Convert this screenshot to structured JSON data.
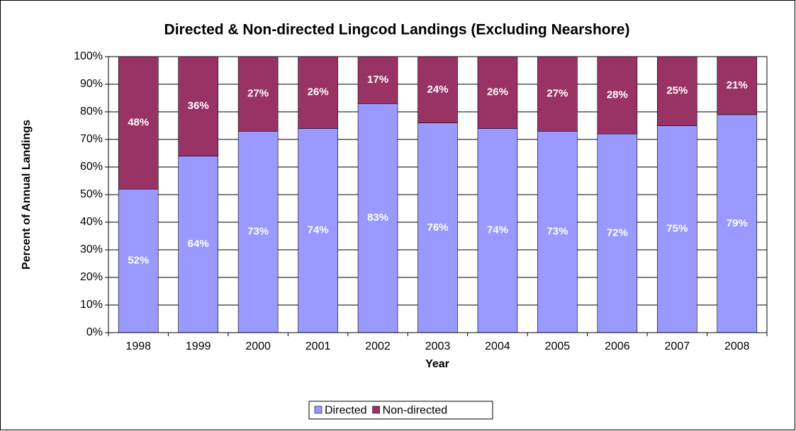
{
  "chart_data": {
    "type": "stacked_bar",
    "title": "Directed & Non-directed Lingcod Landings (Excluding Nearshore)",
    "x_label": "Year",
    "y_label": "Percent of Annual Landings",
    "categories": [
      "1998",
      "1999",
      "2000",
      "2001",
      "2002",
      "2003",
      "2004",
      "2005",
      "2006",
      "2007",
      "2008"
    ],
    "series": [
      {
        "name": "Directed",
        "color": "#9999ff",
        "values": [
          52,
          64,
          73,
          74,
          83,
          76,
          74,
          73,
          72,
          75,
          79
        ],
        "value_labels": [
          "52%",
          "64%",
          "73%",
          "74%",
          "83%",
          "76%",
          "74%",
          "73%",
          "72%",
          "75%",
          "79%"
        ]
      },
      {
        "name": "Non-directed",
        "color": "#993366",
        "values": [
          48,
          36,
          27,
          26,
          17,
          24,
          26,
          27,
          28,
          25,
          21
        ],
        "value_labels": [
          "48%",
          "36%",
          "27%",
          "26%",
          "17%",
          "24%",
          "26%",
          "27%",
          "28%",
          "25%",
          "21%"
        ]
      }
    ],
    "ylim": [
      0,
      100
    ],
    "yticks": [
      {
        "value": 0,
        "label": "0%"
      },
      {
        "value": 10,
        "label": "10%"
      },
      {
        "value": 20,
        "label": "20%"
      },
      {
        "value": 30,
        "label": "30%"
      },
      {
        "value": 40,
        "label": "40%"
      },
      {
        "value": 50,
        "label": "50%"
      },
      {
        "value": 60,
        "label": "60%"
      },
      {
        "value": 70,
        "label": "70%"
      },
      {
        "value": 80,
        "label": "80%"
      },
      {
        "value": 90,
        "label": "90%"
      },
      {
        "value": 100,
        "label": "100%"
      }
    ],
    "grid": true,
    "legend": "bottom"
  }
}
